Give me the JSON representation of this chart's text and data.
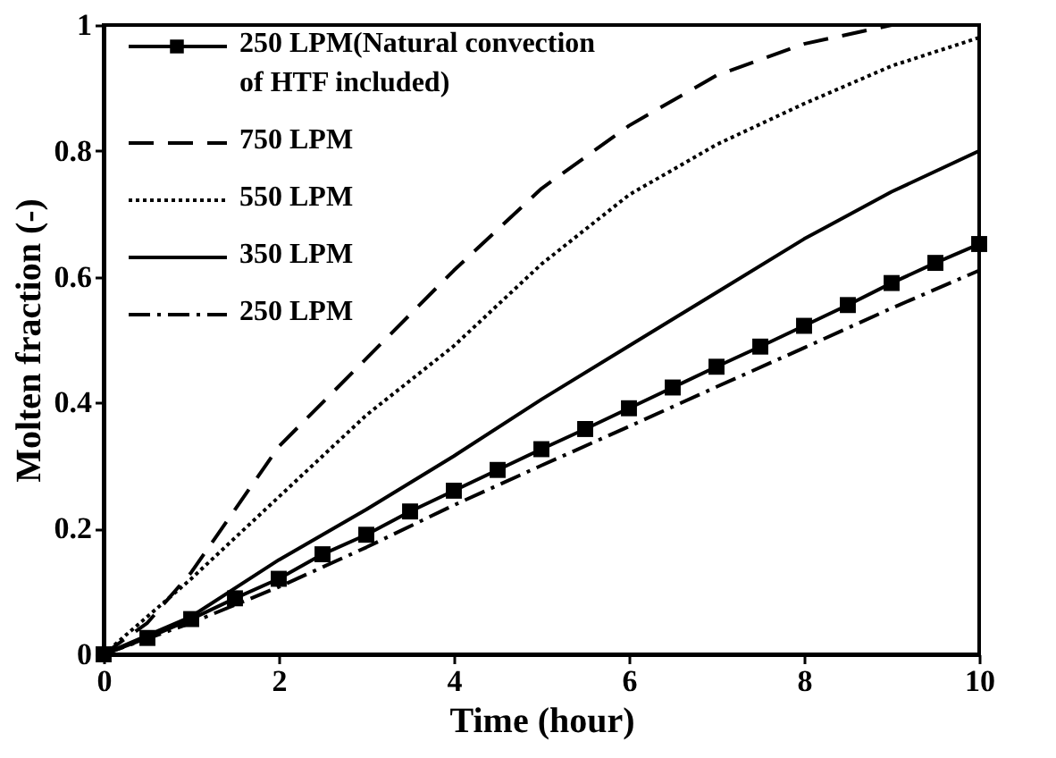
{
  "chart_data": {
    "type": "line",
    "xlabel": "Time (hour)",
    "ylabel": "Molten fraction (-)",
    "xlim": [
      0,
      10
    ],
    "ylim": [
      0,
      1
    ],
    "xticks": [
      0,
      2,
      4,
      6,
      8,
      10
    ],
    "yticks": [
      0,
      0.2,
      0.4,
      0.6,
      0.8,
      1
    ],
    "grid": false,
    "legend": "top left",
    "series": [
      {
        "name": "250 LPM(Natural  convection\nof HTF included)",
        "color": "#000000",
        "line_style": "solid",
        "marker": "square",
        "x": [
          0,
          0.5,
          1,
          1.5,
          2,
          2.5,
          3,
          3.5,
          4,
          4.5,
          5,
          5.5,
          6,
          6.5,
          7,
          7.5,
          8,
          8.5,
          9,
          9.5,
          10
        ],
        "values": [
          0,
          0.026,
          0.056,
          0.089,
          0.12,
          0.159,
          0.19,
          0.227,
          0.26,
          0.293,
          0.326,
          0.358,
          0.391,
          0.424,
          0.457,
          0.489,
          0.522,
          0.555,
          0.59,
          0.622,
          0.652
        ]
      },
      {
        "name": "750 LPM",
        "color": "#000000",
        "line_style": "dashed",
        "marker": "none",
        "x": [
          0,
          0.5,
          1,
          1.5,
          2,
          3,
          4,
          5,
          6,
          7,
          8,
          9,
          10
        ],
        "values": [
          0,
          0.05,
          0.13,
          0.23,
          0.33,
          0.47,
          0.61,
          0.74,
          0.84,
          0.92,
          0.97,
          1.0,
          1.0
        ]
      },
      {
        "name": "550 LPM",
        "color": "#000000",
        "line_style": "dotted",
        "marker": "none",
        "x": [
          0,
          1,
          2,
          3,
          4,
          5,
          6,
          7,
          8,
          9,
          10
        ],
        "values": [
          0,
          0.12,
          0.25,
          0.38,
          0.49,
          0.62,
          0.73,
          0.81,
          0.875,
          0.935,
          0.98
        ]
      },
      {
        "name": "350 LPM",
        "color": "#000000",
        "line_style": "solid",
        "marker": "none",
        "x": [
          0,
          1,
          2,
          3,
          4,
          5,
          6,
          7,
          8,
          9,
          10
        ],
        "values": [
          0,
          0.06,
          0.15,
          0.23,
          0.315,
          0.405,
          0.49,
          0.575,
          0.66,
          0.735,
          0.8
        ]
      },
      {
        "name": "250 LPM",
        "color": "#000000",
        "line_style": "dashdot",
        "marker": "none",
        "x": [
          0,
          1,
          2,
          3,
          4,
          5,
          6,
          7,
          8,
          9,
          10
        ],
        "values": [
          0,
          0.05,
          0.107,
          0.17,
          0.237,
          0.3,
          0.362,
          0.425,
          0.487,
          0.55,
          0.61
        ]
      }
    ]
  }
}
